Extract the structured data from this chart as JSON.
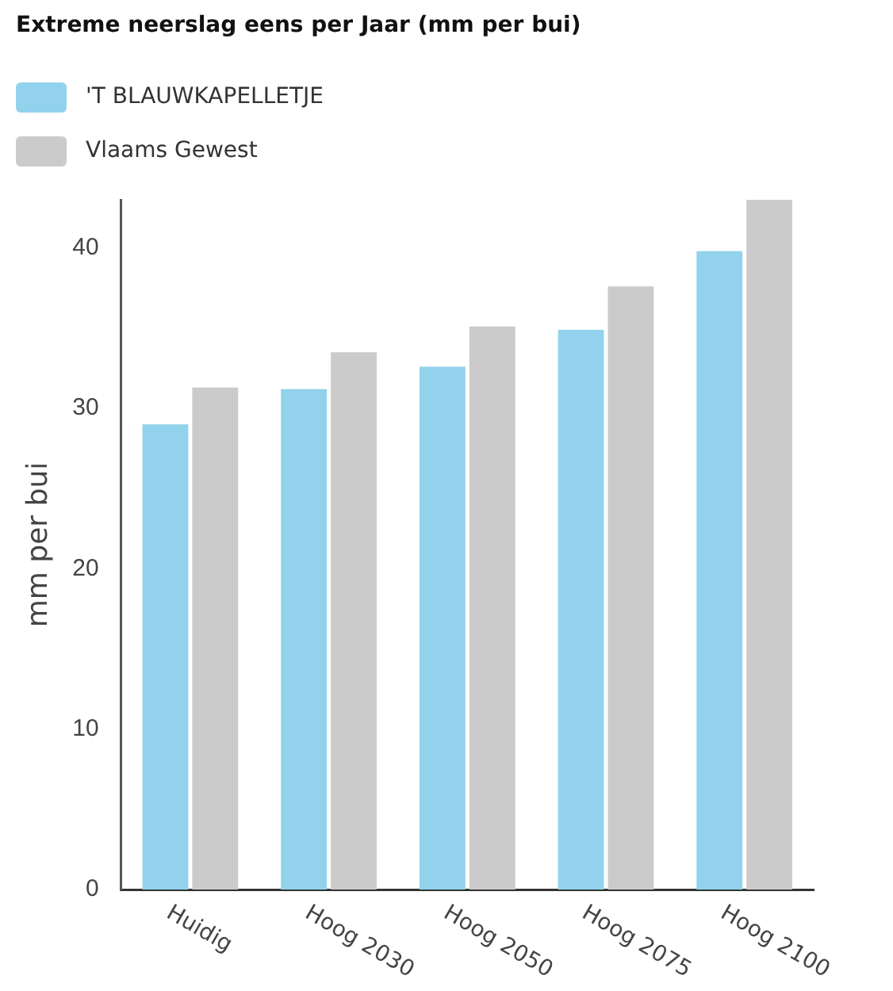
{
  "chart_data": {
    "type": "bar",
    "title": "Extreme neerslag eens per Jaar (mm per bui)",
    "ylabel": "mm per bui",
    "categories": [
      "Huidig",
      "Hoog 2030",
      "Hoog 2050",
      "Hoog 2075",
      "Hoog 2100"
    ],
    "series": [
      {
        "name": "'T BLAUWKAPELLETJE",
        "color": "#93d2ec",
        "values": [
          29.0,
          31.2,
          32.6,
          34.9,
          39.8
        ]
      },
      {
        "name": "Vlaams Gewest",
        "color": "#cbcbcb",
        "values": [
          31.3,
          33.5,
          35.1,
          37.6,
          43.0
        ]
      }
    ],
    "ylim": [
      0,
      43
    ],
    "yticks": [
      0,
      10,
      20,
      30,
      40
    ],
    "grid": false,
    "legend": "top left"
  }
}
